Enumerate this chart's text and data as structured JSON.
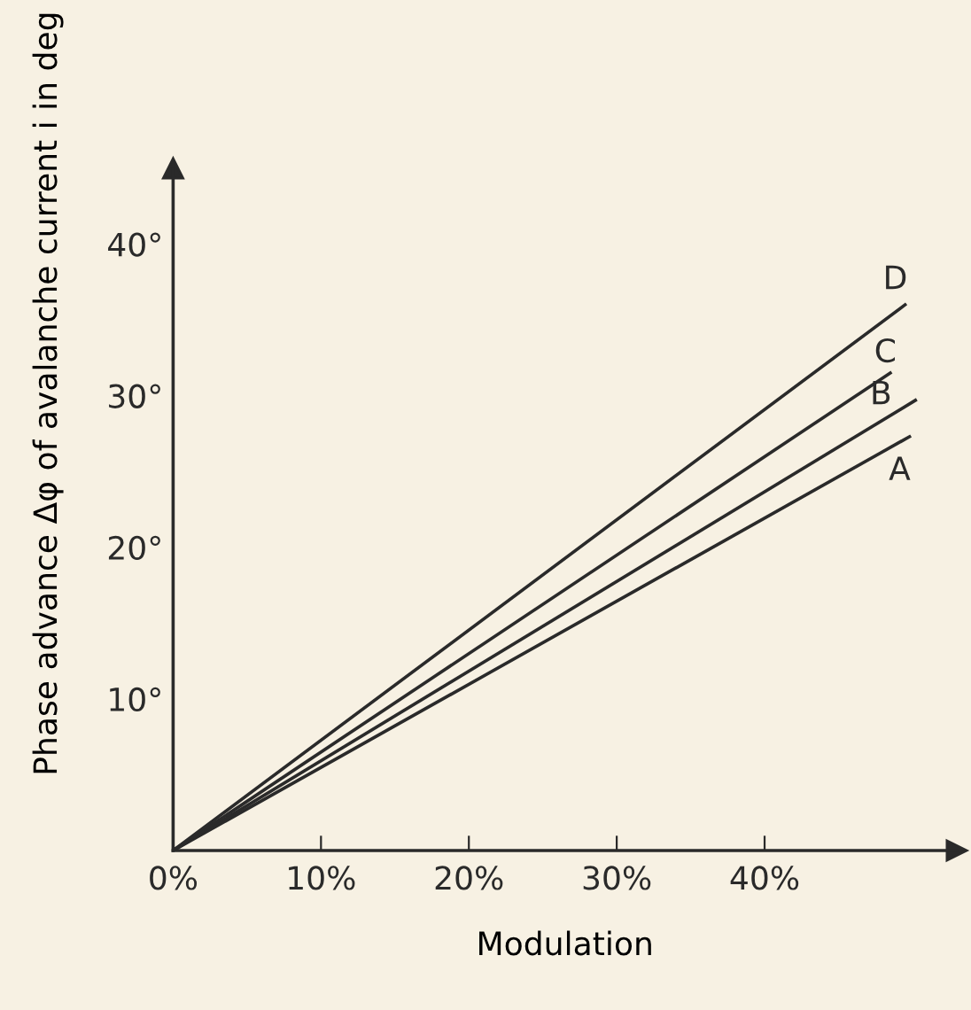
{
  "chart_data": {
    "type": "line",
    "xlabel": "Modulation",
    "ylabel": "Phase advance Δφ of avalanche current i in deg",
    "xlim": [
      0,
      53
    ],
    "ylim": [
      0,
      45
    ],
    "xticks": [
      {
        "value": 0,
        "label": "0%"
      },
      {
        "value": 10,
        "label": "10%"
      },
      {
        "value": 20,
        "label": "20%"
      },
      {
        "value": 30,
        "label": "30%"
      },
      {
        "value": 40,
        "label": "40%"
      }
    ],
    "yticks": [
      {
        "value": 10,
        "label": "10°"
      },
      {
        "value": 20,
        "label": "20°"
      },
      {
        "value": 30,
        "label": "30°"
      },
      {
        "value": 40,
        "label": "40°"
      }
    ],
    "grid": false,
    "legend": false,
    "marker": "none",
    "series": [
      {
        "name": "A",
        "color": "#2a2a2a",
        "x": [
          0,
          49.8
        ],
        "values": [
          0,
          27.3
        ]
      },
      {
        "name": "B",
        "color": "#2a2a2a",
        "x": [
          0,
          50.2
        ],
        "values": [
          0,
          29.7
        ]
      },
      {
        "name": "C",
        "color": "#2a2a2a",
        "x": [
          0,
          48.5
        ],
        "values": [
          0,
          31.5
        ]
      },
      {
        "name": "D",
        "color": "#2a2a2a",
        "x": [
          0,
          49.5
        ],
        "values": [
          0,
          36
        ]
      }
    ]
  }
}
